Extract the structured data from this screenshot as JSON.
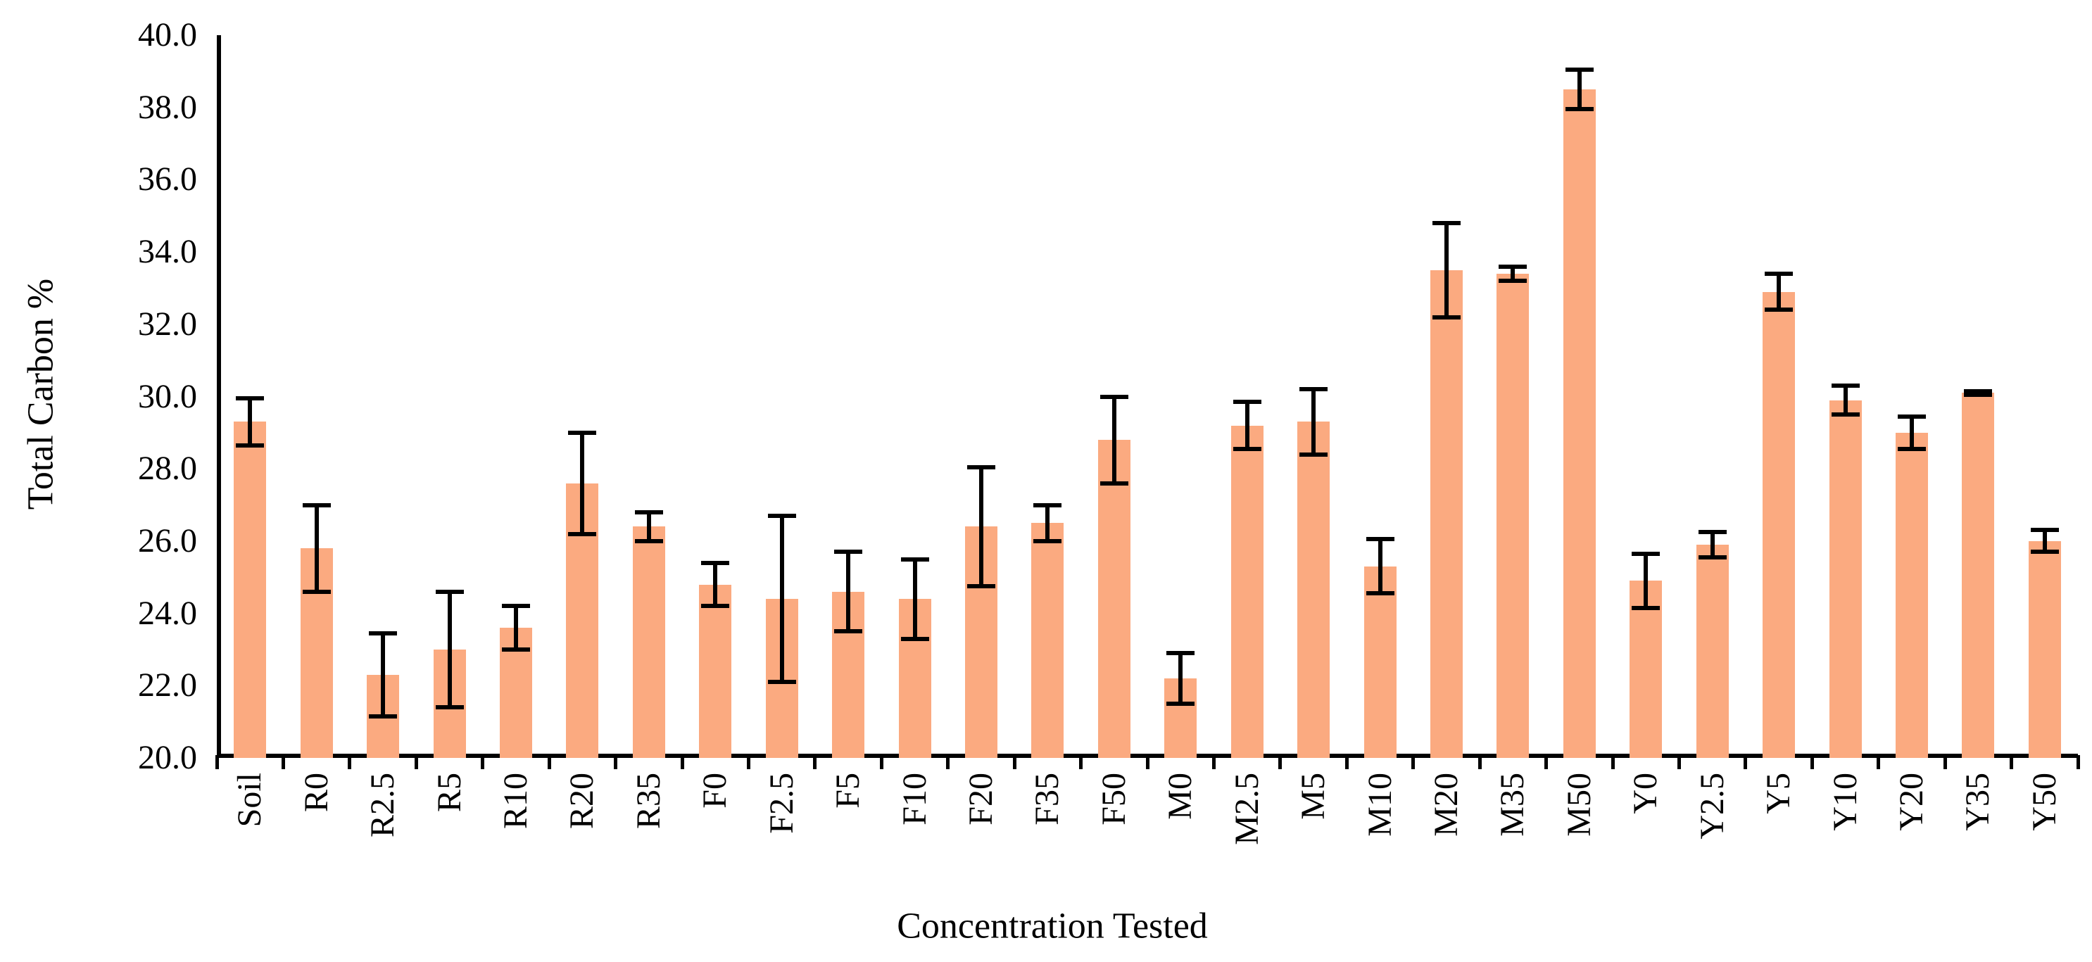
{
  "chart_data": {
    "type": "bar",
    "title": "",
    "xlabel": "Concentration Tested",
    "ylabel": "Total Carbon %",
    "ylim": [
      20.0,
      40.0
    ],
    "ytick_step": 2.0,
    "ytick_labels": [
      "20.0",
      "22.0",
      "24.0",
      "26.0",
      "28.0",
      "30.0",
      "32.0",
      "34.0",
      "36.0",
      "38.0",
      "40.0"
    ],
    "grid": false,
    "legend": "none",
    "bar_color": "#FBAA80",
    "error_bar_color": "#000000",
    "axis_color": "#000000",
    "categories": [
      "Soil",
      "R0",
      "R2.5",
      "R5",
      "R10",
      "R20",
      "R35",
      "F0",
      "F2.5",
      "F5",
      "F10",
      "F20",
      "F35",
      "F50",
      "M0",
      "M2.5",
      "M5",
      "M10",
      "M20",
      "M35",
      "M50",
      "Y0",
      "Y2.5",
      "Y5",
      "Y10",
      "Y20",
      "Y35",
      "Y50"
    ],
    "values": [
      29.3,
      25.8,
      22.3,
      23.0,
      23.6,
      27.6,
      26.4,
      24.8,
      24.4,
      24.6,
      24.4,
      26.4,
      26.5,
      28.8,
      22.2,
      29.2,
      29.3,
      25.3,
      33.5,
      33.4,
      38.5,
      24.9,
      25.9,
      32.9,
      29.9,
      29.0,
      30.1,
      26.0
    ],
    "errors": [
      0.65,
      1.2,
      1.15,
      1.6,
      0.6,
      1.4,
      0.4,
      0.6,
      2.3,
      1.1,
      1.1,
      1.65,
      0.5,
      1.2,
      0.7,
      0.65,
      0.9,
      0.75,
      1.3,
      0.2,
      0.55,
      0.75,
      0.35,
      0.5,
      0.4,
      0.45,
      0.05,
      0.3
    ]
  }
}
